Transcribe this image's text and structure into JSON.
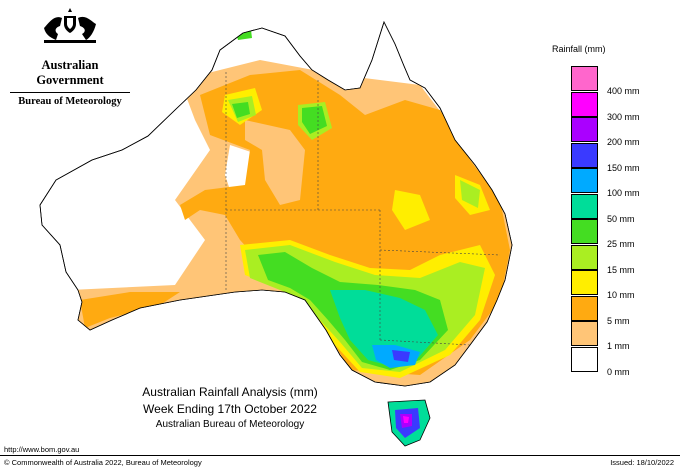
{
  "header": {
    "org_line1": "Australian Government",
    "org_line2": "Bureau of Meteorology"
  },
  "legend": {
    "title": "Rainfall (mm)",
    "items": [
      {
        "label": "400 mm",
        "color": "#ff66cc"
      },
      {
        "label": "300 mm",
        "color": "#ff00ff"
      },
      {
        "label": "200 mm",
        "color": "#aa00ff"
      },
      {
        "label": "150 mm",
        "color": "#3a3aff"
      },
      {
        "label": "100 mm",
        "color": "#00aaff"
      },
      {
        "label": "50 mm",
        "color": "#00dd99"
      },
      {
        "label": "25 mm",
        "color": "#44dd22"
      },
      {
        "label": "15 mm",
        "color": "#aaee22"
      },
      {
        "label": "10 mm",
        "color": "#ffee00"
      },
      {
        "label": "5 mm",
        "color": "#ffaa11"
      },
      {
        "label": "1 mm",
        "color": "#ffc577"
      },
      {
        "label": "0 mm",
        "color": "#ffffff"
      }
    ]
  },
  "title": {
    "line1": "Australian Rainfall Analysis (mm)",
    "line2": "Week Ending 17th October 2022",
    "line3": "Australian Bureau of Meteorology"
  },
  "footer": {
    "url": "http://www.bom.gov.au",
    "copyright": "© Commonwealth of Australia 2022, Bureau of Meteorology",
    "issued": "Issued: 18/10/2022"
  }
}
